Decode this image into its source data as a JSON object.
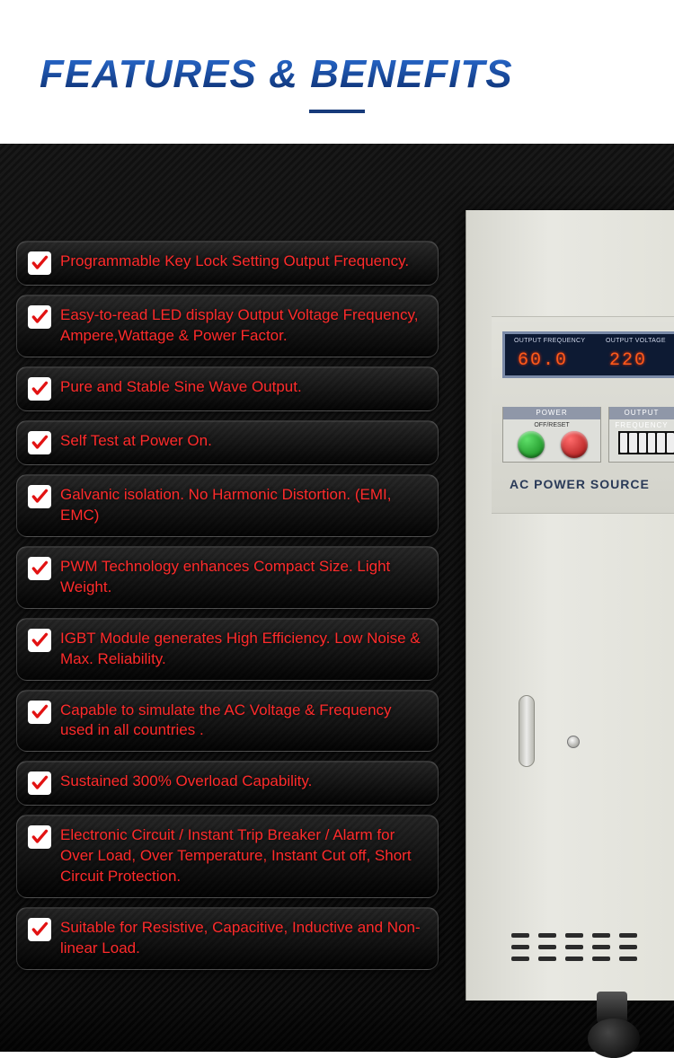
{
  "header": {
    "title": "FEATURES & BENEFITS"
  },
  "colors": {
    "title_gradient_top": "#2b6fd6",
    "title_gradient_bottom": "#0a2a68",
    "underline": "#163a7a",
    "feature_text": "#ff2b2b",
    "check_bg": "#ffffff",
    "check_mark": "#e21212",
    "dark_bg": "#060606",
    "equip_body": "#e2e2da",
    "display_bg": "#0d1a33",
    "led_color": "#ff5a1a"
  },
  "features": [
    {
      "text": "Programmable Key Lock Setting Output Frequency."
    },
    {
      "text": "Easy-to-read LED display Output Voltage Frequency, Ampere,Wattage & Power Factor."
    },
    {
      "text": "Pure and Stable Sine Wave Output."
    },
    {
      "text": "Self Test at Power On."
    },
    {
      "text": "Galvanic isolation. No Harmonic Distortion. (EMI, EMC)"
    },
    {
      "text": "PWM Technology enhances Compact Size. Light Weight."
    },
    {
      "text": "IGBT Module generates High Efficiency. Low Noise & Max. Reliability."
    },
    {
      "text": "Capable to simulate the AC Voltage & Frequency used in all countries ."
    },
    {
      "text": "Sustained 300% Overload Capability."
    },
    {
      "text": "Electronic Circuit / Instant Trip Breaker / Alarm for Over Load, Over Temperature, Instant Cut off, Short Circuit Protection."
    },
    {
      "text": "Suitable for Resistive, Capacitive, Inductive and Non-linear Load."
    }
  ],
  "equipment": {
    "display": {
      "label_left": "OUTPUT  FREQUENCY",
      "label_right": "OUTPUT  VOLTAGE",
      "value_left": "60.0",
      "value_right": "220"
    },
    "power_box_title": "POWER",
    "power_box_sub": "OFF/RESET",
    "freq_box_title": "OUTPUT FREQUENCY",
    "ac_label": "AC POWER SOURCE"
  }
}
